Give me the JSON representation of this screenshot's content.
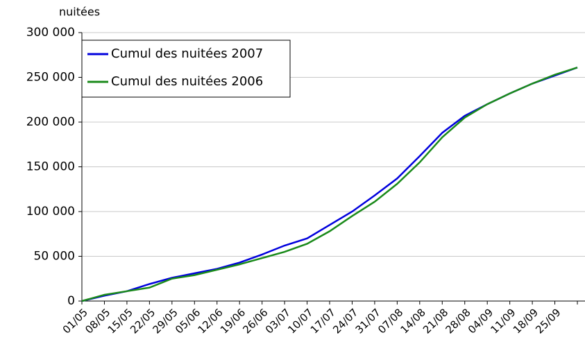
{
  "chart_data": {
    "type": "line",
    "y_label": "nuitées",
    "categories": [
      "01/05",
      "08/05",
      "15/05",
      "22/05",
      "29/05",
      "05/06",
      "12/06",
      "19/06",
      "26/06",
      "03/07",
      "10/07",
      "17/07",
      "24/07",
      "31/07",
      "07/08",
      "14/08",
      "21/08",
      "28/08",
      "04/09",
      "11/09",
      "18/09",
      "25/09",
      null
    ],
    "series": [
      {
        "name": "Cumul des nuitées 2007",
        "color": "#0000dd",
        "values": [
          0,
          6000,
          11000,
          19000,
          26000,
          31000,
          36000,
          43000,
          52000,
          62000,
          70000,
          85000,
          100000,
          118000,
          137000,
          162000,
          188000,
          207000,
          220000,
          232000,
          243000,
          252000,
          261000
        ]
      },
      {
        "name": "Cumul des nuitées 2006",
        "color": "#1a8a1a",
        "values": [
          0,
          7000,
          11000,
          15000,
          25000,
          29000,
          35000,
          41000,
          48000,
          55000,
          64000,
          78000,
          95000,
          111000,
          131000,
          155000,
          183000,
          205000,
          220000,
          232000,
          243000,
          253000,
          261000
        ]
      }
    ],
    "ylim": [
      0,
      300000
    ],
    "yticks": [
      0,
      {
        "value": 50000,
        "label": "50 000"
      },
      {
        "value": 100000,
        "label": "100 000"
      },
      {
        "value": 150000,
        "label": "150 000"
      },
      {
        "value": 200000,
        "label": "200 000"
      },
      {
        "value": 250000,
        "label": "250 000"
      },
      {
        "value": 300000,
        "label": "300 000"
      }
    ],
    "grid": true,
    "legend": "top-left"
  }
}
